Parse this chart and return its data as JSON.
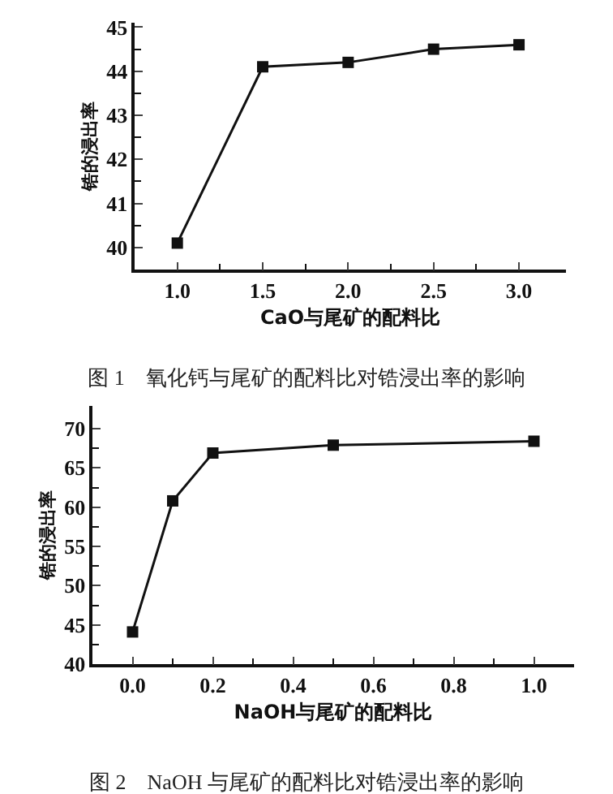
{
  "chart_data": [
    {
      "type": "line",
      "title": "图 1　氧化钙与尾矿的配料比对锆浸出率的影响",
      "xlabel": "CaO与尾矿的配料比",
      "ylabel": "锆的浸出率",
      "x": [
        1.0,
        1.5,
        2.0,
        2.5,
        3.0
      ],
      "series": [
        {
          "color": "#111111",
          "values": [
            40.1,
            44.1,
            44.2,
            44.5,
            44.6
          ]
        }
      ],
      "xlim": [
        0.75,
        3.275
      ],
      "ylim": [
        39.5,
        45.1
      ],
      "xticks": [
        {
          "value": 1,
          "label": "1.0"
        },
        {
          "value": 1.25,
          "label": null
        },
        1.5,
        {
          "value": 1.75,
          "label": null
        },
        {
          "value": 2,
          "label": "2.0"
        },
        {
          "value": 2.25,
          "label": null
        },
        2.5,
        {
          "value": 2.75,
          "label": null
        },
        {
          "value": 3,
          "label": "3.0"
        }
      ],
      "yticks": [
        40,
        {
          "value": 40.5,
          "label": null
        },
        41,
        {
          "value": 41.5,
          "label": null
        },
        42,
        {
          "value": 42.5,
          "label": null
        },
        43,
        {
          "value": 43.5,
          "label": null
        },
        44,
        {
          "value": 44.5,
          "label": null
        },
        45
      ],
      "marker": "square",
      "line_style": "solid",
      "grid": false,
      "legend": false
    },
    {
      "type": "line",
      "title": "图 2　NaOH 与尾矿的配料比对锆浸出率的影响",
      "xlabel": "NaOH与尾矿的配料比",
      "ylabel": "锆的浸出率",
      "x": [
        0.0,
        0.1,
        0.2,
        0.5,
        1.0
      ],
      "series": [
        {
          "color": "#111111",
          "values": [
            44.1,
            60.8,
            66.9,
            67.9,
            68.4
          ]
        }
      ],
      "xlim": [
        -0.1,
        1.1
      ],
      "ylim": [
        40,
        72.9
      ],
      "xticks": [
        {
          "value": 0,
          "label": "0.0"
        },
        {
          "value": 0.1,
          "label": null
        },
        0.2,
        {
          "value": 0.3,
          "label": null
        },
        0.4,
        {
          "value": 0.5,
          "label": null
        },
        0.6,
        {
          "value": 0.7,
          "label": null
        },
        0.8,
        {
          "value": 0.9,
          "label": null
        },
        {
          "value": 1,
          "label": "1.0"
        }
      ],
      "yticks": [
        40,
        {
          "value": 42.5,
          "label": null
        },
        45,
        {
          "value": 47.5,
          "label": null
        },
        50,
        {
          "value": 52.5,
          "label": null
        },
        55,
        {
          "value": 57.5,
          "label": null
        },
        60,
        {
          "value": 62.5,
          "label": null
        },
        65,
        {
          "value": 67.5,
          "label": null
        },
        70
      ],
      "marker": "square",
      "line_style": "solid",
      "grid": false,
      "legend": false
    }
  ]
}
